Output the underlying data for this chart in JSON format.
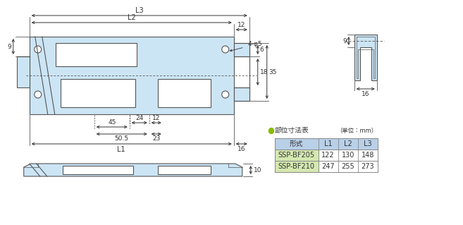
{
  "bg_color": "#ffffff",
  "body_fill": "#cce5f5",
  "body_stroke": "#555555",
  "dim_color": "#333333",
  "dot_color": "#88bb00",
  "table_header_fill": "#b8d0e8",
  "table_row_fill": "#ffffff",
  "table_bf205_fill": "#d4e8b0",
  "table_bf210_fill": "#d4e8b0",
  "table_border": "#888888",
  "table_title": "部位寸法表",
  "table_unit": "（単位：mm）",
  "table_headers": [
    "形式",
    "L1",
    "L2",
    "L3"
  ],
  "table_row1": [
    "SSP-BF205",
    "122",
    "130",
    "148"
  ],
  "table_row2": [
    "SSP-BF210",
    "247",
    "255",
    "273"
  ],
  "dim_L3": "L3",
  "dim_L2": "L2",
  "dim_L1": "L1",
  "dim_12_top": "12",
  "dim_4phi5": "4-φ5",
  "dim_6": "6",
  "dim_18": "18",
  "dim_35": "35",
  "dim_9_left": "9",
  "dim_9_side": "9",
  "dim_16_side": "16",
  "dim_45": "45",
  "dim_24": "24",
  "dim_12_bot": "12",
  "dim_50_5": "50.5",
  "dim_23": "23",
  "dim_16_right": "16",
  "dim_10": "10"
}
